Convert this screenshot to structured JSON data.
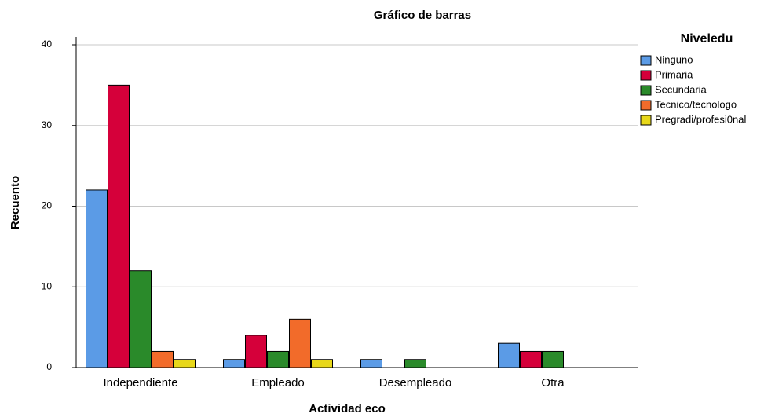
{
  "chart_data": {
    "type": "bar",
    "title": "Gráfico de barras",
    "x_label": "Actividad eco",
    "y_label": "Recuento",
    "legend_title": "Niveledu",
    "categories": [
      "Independiente",
      "Empleado",
      "Desempleado",
      "Otra"
    ],
    "series": [
      {
        "name": "Ninguno",
        "color": "#5b9be6",
        "values": [
          22,
          1,
          1,
          3
        ]
      },
      {
        "name": "Primaria",
        "color": "#d5003a",
        "values": [
          35,
          4,
          0,
          2
        ]
      },
      {
        "name": "Secundaria",
        "color": "#2a8a2a",
        "values": [
          12,
          2,
          1,
          2
        ]
      },
      {
        "name": "Tecnico/tecnologo",
        "color": "#f26b2a",
        "values": [
          2,
          6,
          0,
          0
        ]
      },
      {
        "name": "Pregradi/profesi0nal",
        "color": "#e8d81a",
        "values": [
          1,
          1,
          0,
          0
        ]
      }
    ],
    "ylim": [
      0,
      41
    ],
    "yticks": [
      0,
      10,
      20,
      30,
      40
    ],
    "grid": true,
    "legend": "right"
  }
}
